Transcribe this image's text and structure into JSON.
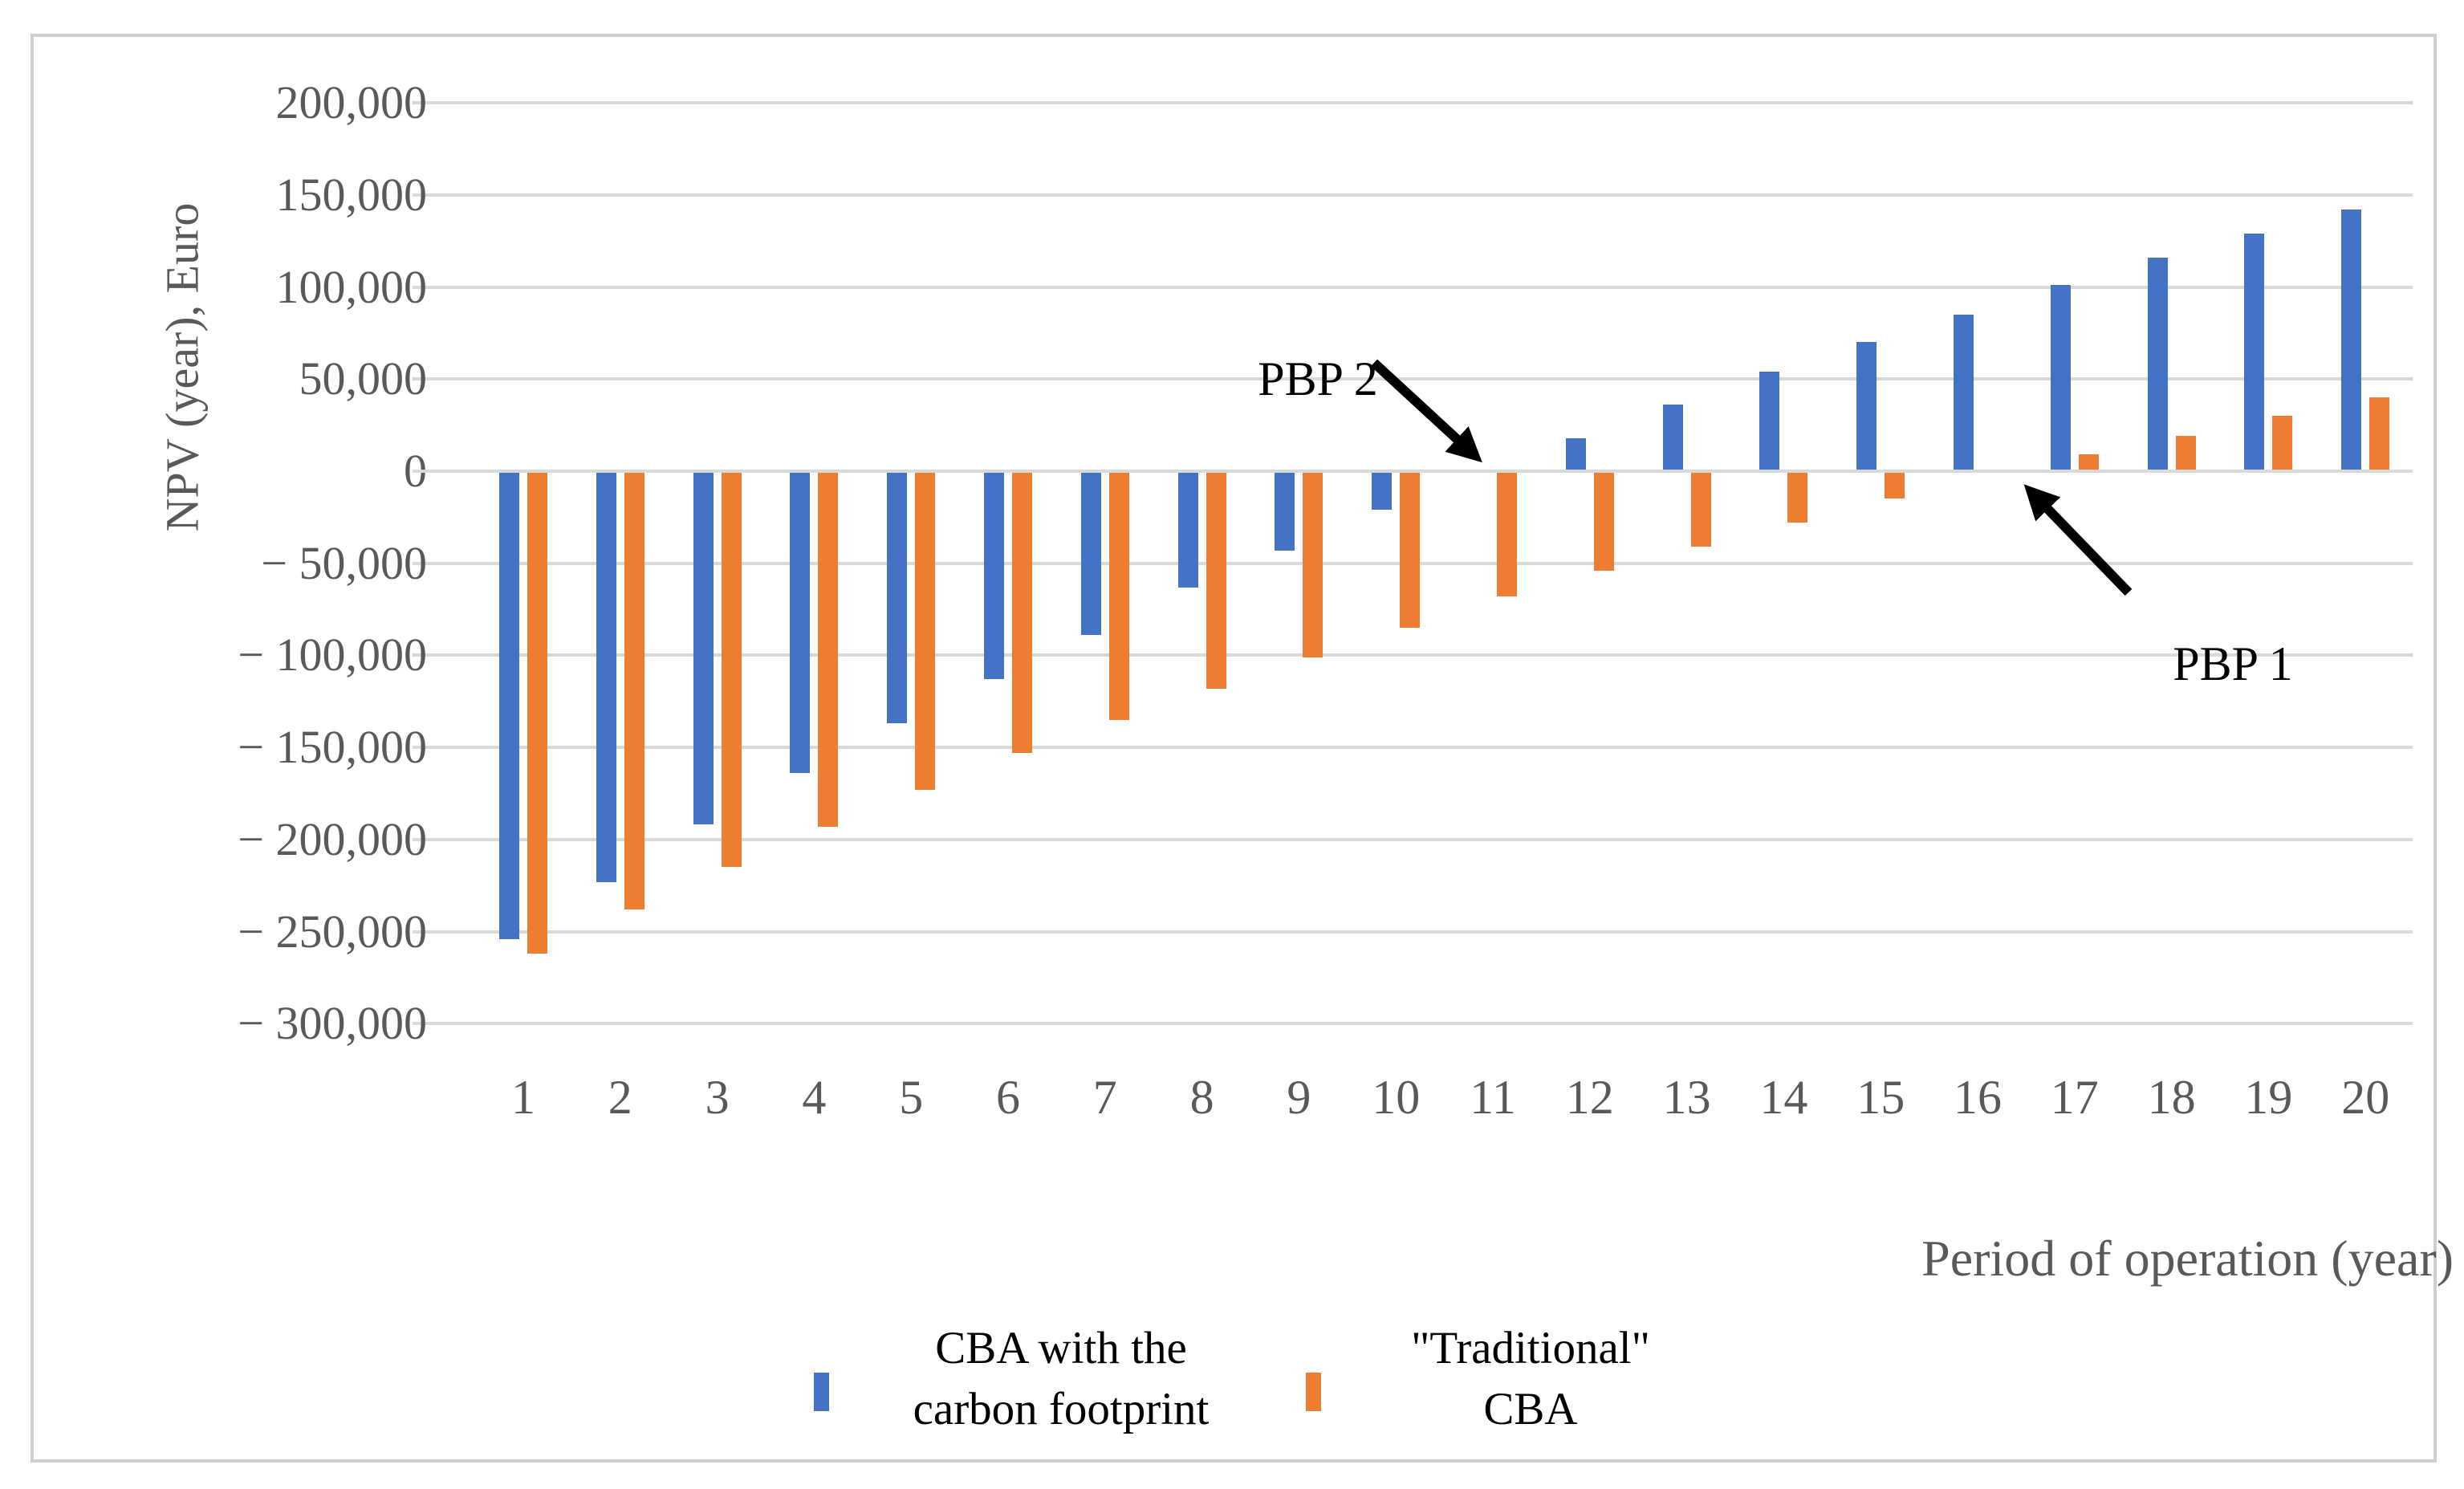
{
  "chart_data": {
    "type": "bar",
    "title": "",
    "xlabel": "Period of operation (year)",
    "ylabel": "NPV (year), Euro",
    "categories": [
      "1",
      "2",
      "3",
      "4",
      "5",
      "6",
      "7",
      "8",
      "9",
      "10",
      "11",
      "12",
      "13",
      "14",
      "15",
      "16",
      "17",
      "18",
      "19",
      "20"
    ],
    "series": [
      {
        "name": "CBA with the carbon footprint",
        "color": "#4472C4",
        "values": [
          -254000,
          -223000,
          -192000,
          -164000,
          -137000,
          -113000,
          -89000,
          -63000,
          -43000,
          -21000,
          0,
          18000,
          36000,
          54000,
          70000,
          85000,
          101000,
          116000,
          129000,
          142000
        ]
      },
      {
        "name": "\"Traditional\" CBA",
        "color": "#ED7D31",
        "values": [
          -262000,
          -238000,
          -215000,
          -193000,
          -173000,
          -153000,
          -135000,
          -118000,
          -101000,
          -85000,
          -68000,
          -54000,
          -41000,
          -28000,
          -15000,
          -1000,
          9000,
          19000,
          30000,
          40000
        ]
      }
    ],
    "ylim": [
      -300000,
      200000
    ],
    "ytick_step": 50000,
    "ytick_labels": [
      "200,000",
      "150,000",
      "100,000",
      "50,000",
      "0",
      "− 50,000",
      "− 100,000",
      "− 150,000",
      "− 200,000",
      "− 250,000",
      "− 300,000"
    ],
    "grid": "horizontal-only",
    "legend_position": "bottom",
    "legend_items": [
      {
        "line1": "CBA with the",
        "line2": "carbon footprint"
      },
      {
        "line1": "\"Traditional\"",
        "line2": "CBA"
      }
    ],
    "annotations": [
      {
        "text": "PBP 2",
        "target_year": "11",
        "marks": "zero crossing of CBA with the carbon footprint"
      },
      {
        "text": "PBP 1",
        "target_year": "17",
        "marks": "zero crossing of Traditional CBA"
      }
    ],
    "colors": {
      "gridline": "#D9D9D9",
      "axis_text": "#595959",
      "annotation_text": "#000000",
      "frame_border": "#CFCECE"
    }
  }
}
